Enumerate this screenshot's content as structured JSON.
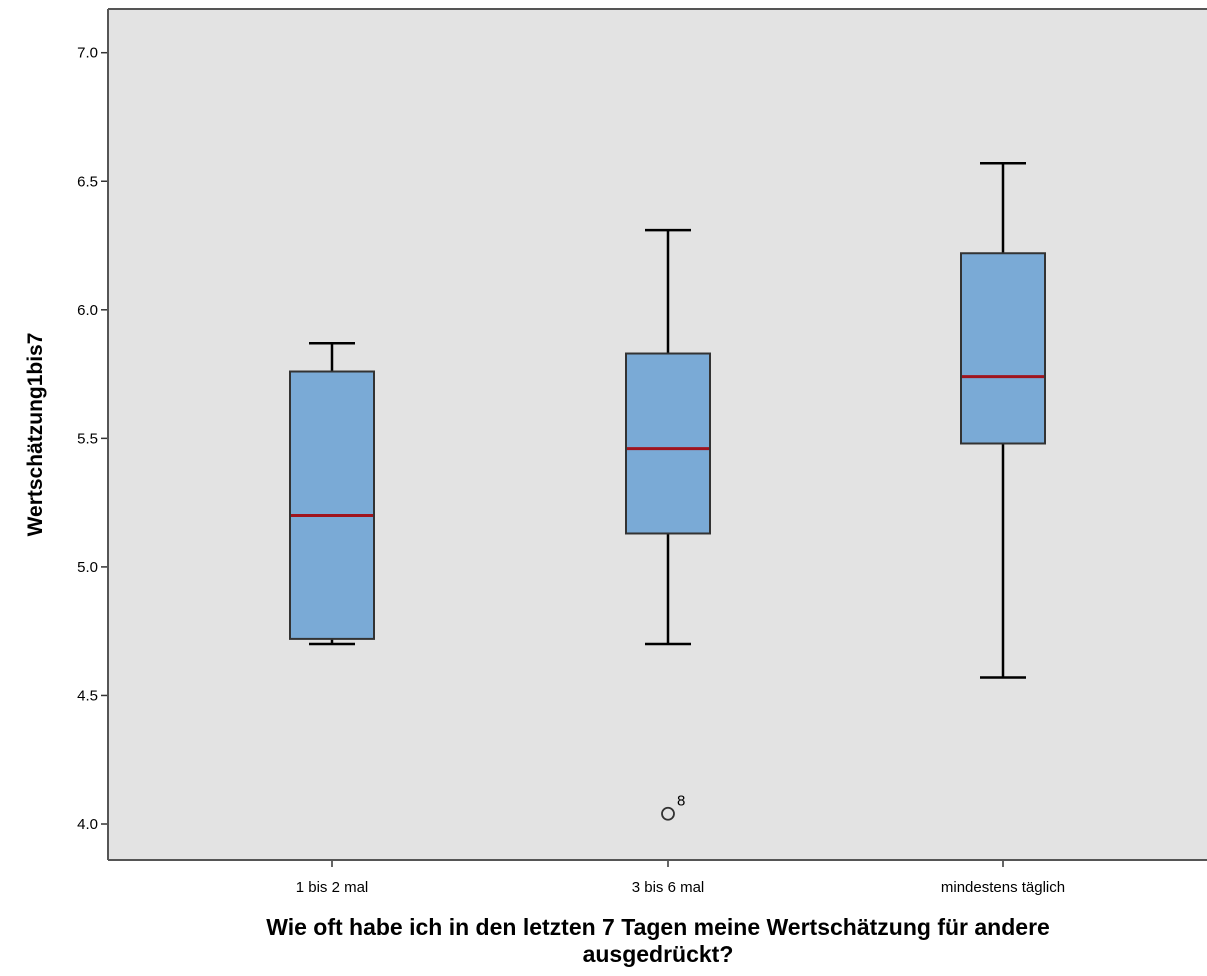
{
  "chart_data": {
    "type": "boxplot",
    "title": "",
    "xlabel_lines": [
      "Wie oft habe ich in den letzten 7 Tagen meine Wertschätzung für andere",
      "ausgedrückt?"
    ],
    "ylabel": "Wertschätzung1bis7",
    "ylim": [
      3.86,
      7.17
    ],
    "yticks": [
      "4.0",
      "4.5",
      "5.0",
      "5.5",
      "6.0",
      "6.5",
      "7.0"
    ],
    "grid": false,
    "categories": [
      "1 bis 2 mal",
      "3 bis 6 mal",
      "mindestens täglich"
    ],
    "boxes": [
      {
        "category": "1 bis 2 mal",
        "whisker_low": 4.7,
        "q1": 4.72,
        "median": 5.2,
        "q3": 5.76,
        "whisker_high": 5.87,
        "outliers": []
      },
      {
        "category": "3 bis 6 mal",
        "whisker_low": 4.7,
        "q1": 5.13,
        "median": 5.46,
        "q3": 5.83,
        "whisker_high": 6.31,
        "outliers": [
          {
            "value": 4.04,
            "label": "8"
          }
        ]
      },
      {
        "category": "mindestens täglich",
        "whisker_low": 4.57,
        "q1": 5.48,
        "median": 5.74,
        "q3": 6.22,
        "whisker_high": 6.57,
        "outliers": []
      }
    ],
    "colors": {
      "plot_background": "#e3e3e3",
      "box_fill": "#7aaad6",
      "box_stroke": "#333333",
      "median": "#a0141e",
      "whisker": "#000000",
      "frame": "#555555"
    }
  }
}
